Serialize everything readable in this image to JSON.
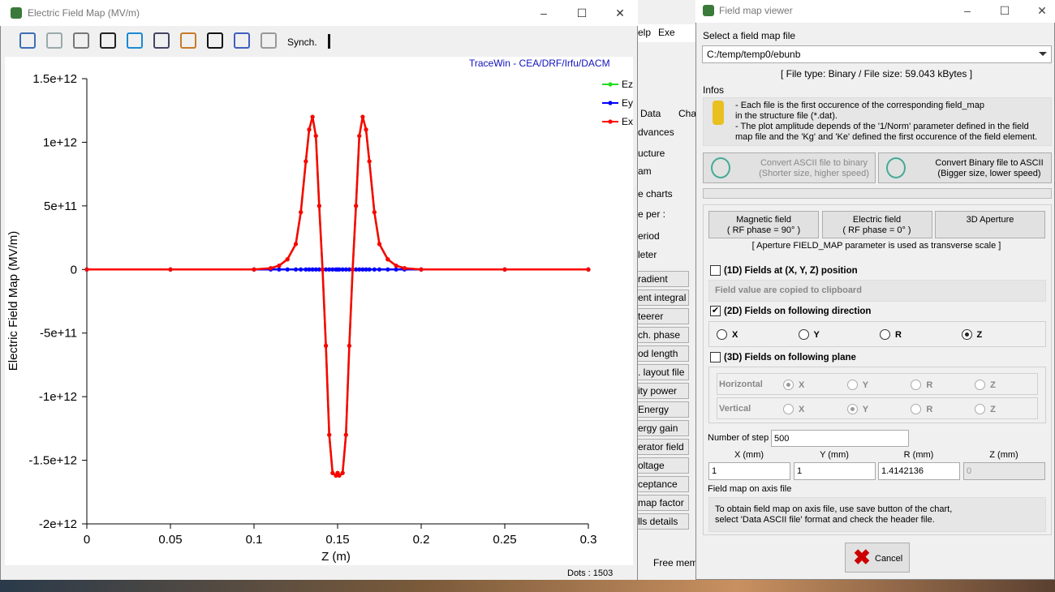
{
  "plot_window": {
    "title": "Electric Field Map (MV/m)",
    "toolbar_label": "Synch.",
    "credit": "TraceWin - CEA/DRF/Irfu/DACM",
    "status": "Dots : 1503"
  },
  "chart_data": {
    "type": "line",
    "ylabel": "Electric Field Map (MV/m)",
    "xlabel": "Z (m)",
    "x": [
      0,
      0.05,
      0.1,
      0.11,
      0.115,
      0.12,
      0.125,
      0.128,
      0.131,
      0.133,
      0.135,
      0.137,
      0.139,
      0.141,
      0.143,
      0.145,
      0.147,
      0.149,
      0.15,
      0.151,
      0.153,
      0.155,
      0.157,
      0.159,
      0.161,
      0.163,
      0.165,
      0.167,
      0.169,
      0.172,
      0.175,
      0.18,
      0.185,
      0.19,
      0.2,
      0.25,
      0.3
    ],
    "series": [
      {
        "name": "Ez",
        "color": "#22dd22",
        "values": [
          0,
          0,
          0,
          10000000000.0,
          30000000000.0,
          80000000000.0,
          200000000000.0,
          450000000000.0,
          850000000000.0,
          1100000000000.0,
          1200000000000.0,
          1050000000000.0,
          500000000000.0,
          0,
          -600000000000.0,
          -1300000000000.0,
          -1600000000000.0,
          -1620000000000.0,
          -1600000000000.0,
          -1620000000000.0,
          -1600000000000.0,
          -1300000000000.0,
          -600000000000.0,
          0,
          500000000000.0,
          1050000000000.0,
          1200000000000.0,
          1100000000000.0,
          850000000000.0,
          450000000000.0,
          200000000000.0,
          80000000000.0,
          30000000000.0,
          10000000000.0,
          0,
          0,
          0
        ]
      },
      {
        "name": "Ey",
        "color": "#0000ff",
        "values": [
          0,
          0,
          0,
          0,
          0,
          0,
          0,
          0,
          0,
          0,
          0,
          0,
          0,
          0,
          0,
          0,
          0,
          0,
          0,
          0,
          0,
          0,
          0,
          0,
          0,
          0,
          0,
          0,
          0,
          0,
          0,
          0,
          0,
          0,
          0,
          0,
          0
        ]
      },
      {
        "name": "Ex",
        "color": "#ff0000",
        "values": [
          0,
          0,
          0,
          10000000000.0,
          30000000000.0,
          80000000000.0,
          200000000000.0,
          450000000000.0,
          850000000000.0,
          1100000000000.0,
          1200000000000.0,
          1050000000000.0,
          500000000000.0,
          0,
          -600000000000.0,
          -1300000000000.0,
          -1600000000000.0,
          -1620000000000.0,
          -1600000000000.0,
          -1620000000000.0,
          -1600000000000.0,
          -1300000000000.0,
          -600000000000.0,
          0,
          500000000000.0,
          1050000000000.0,
          1200000000000.0,
          1100000000000.0,
          850000000000.0,
          450000000000.0,
          200000000000.0,
          80000000000.0,
          30000000000.0,
          10000000000.0,
          0,
          0,
          0
        ]
      }
    ],
    "xlim": [
      0,
      0.3
    ],
    "xticks": [
      0,
      0.05,
      0.1,
      0.15,
      0.2,
      0.25,
      0.3
    ],
    "ylim": [
      -2000000000000.0,
      1500000000000.0
    ],
    "yticks": [
      {
        "value": -2000000000000.0,
        "label": "-2e+12"
      },
      {
        "value": -1500000000000.0,
        "label": "-1.5e+12"
      },
      {
        "value": -1000000000000.0,
        "label": "-1e+12"
      },
      {
        "value": -500000000000.0,
        "label": "-5e+11"
      },
      0,
      {
        "value": 500000000000.0,
        "label": "5e+11"
      },
      {
        "value": 1000000000000.0,
        "label": "1e+12"
      },
      {
        "value": 1500000000000.0,
        "label": "1.5e+12"
      }
    ],
    "legend": "upper right"
  },
  "background_window": {
    "items": [
      "elp",
      "Exe",
      "Data",
      "Cha",
      "dvances",
      "ucture",
      "am",
      "e charts",
      "e per :",
      "eriod",
      "leter",
      "radient",
      "ent integral",
      "teerer",
      "ch. phase",
      "od length",
      ". layout file",
      "ity power",
      "Energy",
      "ergy gain",
      "erator field",
      "oltage",
      "ceptance",
      "map factor",
      "lls details",
      "Free memo"
    ]
  },
  "viewer": {
    "title": "Field map viewer",
    "file_label": "Select a field map file",
    "file": "C:/temp/temp0/ebunb",
    "file_info": "[ File type: Binary  /  File size: 59.043 kBytes ]",
    "infos_label": "Infos",
    "infos": [
      "- Each file is the first occurence of the corresponding field_map",
      "in the structure file (*.dat).",
      "- The plot amplitude depends of the  '1/Norm' parameter defined in the field",
      "map file and the 'Kg' and 'Ke' defined the first occurence of the field element."
    ],
    "convert_buttons": [
      [
        "Convert ASCII file to binary",
        "(Shorter size, higher speed)"
      ],
      [
        "Convert Binary file to ASCII",
        "(Bigger size, lower speed)"
      ]
    ],
    "field_buttons": [
      [
        "Magnetic field",
        "( RF phase = 90° )"
      ],
      [
        "Electric field",
        "( RF phase = 0° )"
      ],
      [
        "3D Aperture"
      ]
    ],
    "aperture_note": "[ Aperture FIELD_MAP parameter is used as transverse scale ]",
    "option_1d": {
      "label": "(1D) Fields at (X, Y, Z) position",
      "checked": false,
      "note": "Field value are copied to clipboard"
    },
    "option_2d": {
      "label": "(2D) Fields on following direction",
      "checked": true,
      "directions": [
        "X",
        "Y",
        "R",
        "Z"
      ],
      "selected": 3
    },
    "option_3d": {
      "label": "(3D) Fields on following plane",
      "checked": false,
      "planes": [
        {
          "name": "Horizontal",
          "axes": [
            "X",
            "Y",
            "R",
            "Z"
          ],
          "selected": 0
        },
        {
          "name": "Vertical",
          "axes": [
            "X",
            "Y",
            "R",
            "Z"
          ],
          "selected": 1
        }
      ]
    },
    "steps_label": "Number of step",
    "steps": "500",
    "coords": [
      {
        "label": "X (mm)",
        "value": "1"
      },
      {
        "label": "Y (mm)",
        "value": "1"
      },
      {
        "label": "R (mm)",
        "value": "1.4142136"
      },
      {
        "label": "Z (mm)",
        "value": "0"
      }
    ],
    "axis_file_label": "Field map on axis file",
    "axis_file_note": [
      "To obtain field map on axis file, use save button of the chart,",
      "select 'Data ASCII file' format and check the header file."
    ],
    "cancel": "Cancel"
  }
}
